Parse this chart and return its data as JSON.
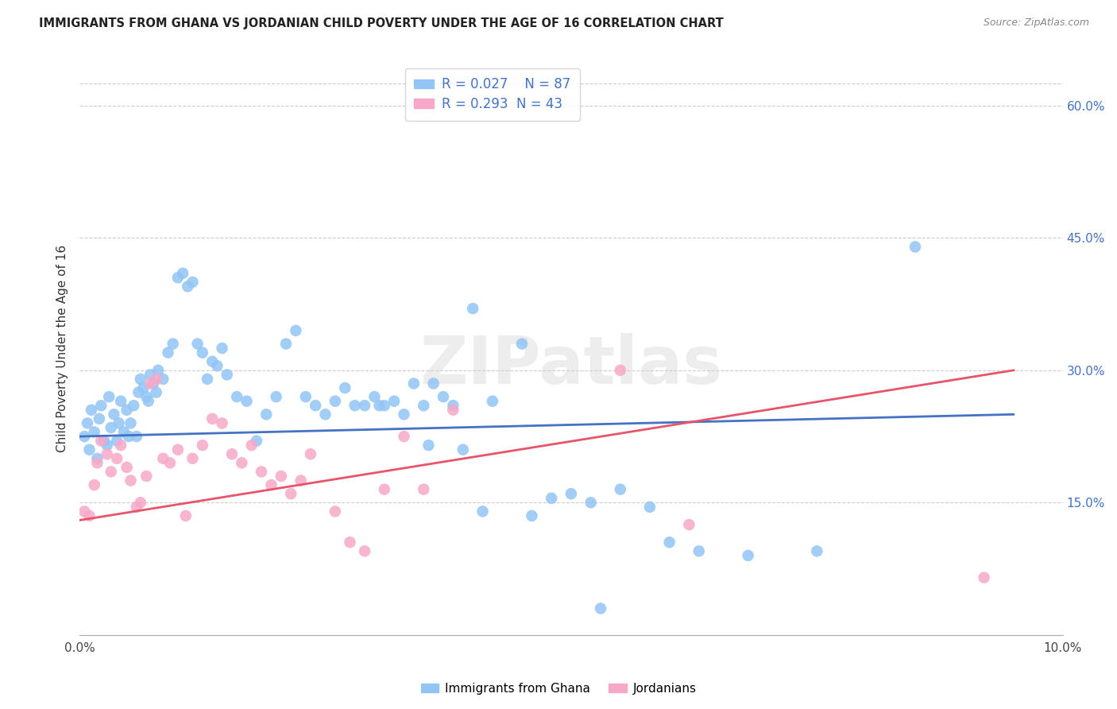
{
  "title": "IMMIGRANTS FROM GHANA VS JORDANIAN CHILD POVERTY UNDER THE AGE OF 16 CORRELATION CHART",
  "source": "Source: ZipAtlas.com",
  "ylabel": "Child Poverty Under the Age of 16",
  "xlim": [
    0.0,
    10.0
  ],
  "ylim": [
    0.0,
    65.0
  ],
  "xtick_positions": [
    0.0,
    2.0,
    4.0,
    6.0,
    8.0,
    10.0
  ],
  "xticklabels": [
    "0.0%",
    "",
    "",
    "",
    "",
    "10.0%"
  ],
  "ytick_positions": [
    15.0,
    30.0,
    45.0,
    60.0
  ],
  "ytick_labels": [
    "15.0%",
    "30.0%",
    "45.0%",
    "60.0%"
  ],
  "blue_color": "#92c5f5",
  "pink_color": "#f7a8c8",
  "blue_line_color": "#4472C4",
  "pink_line_color": "#e8546a",
  "legend_blue_r": "R = 0.027",
  "legend_blue_n": "N = 87",
  "legend_pink_r": "R = 0.293",
  "legend_pink_n": "N = 43",
  "legend_label_blue": "Immigrants from Ghana",
  "legend_label_pink": "Jordanians",
  "watermark": "ZIPatlas",
  "blue_scatter_x": [
    0.05,
    0.08,
    0.1,
    0.12,
    0.15,
    0.18,
    0.2,
    0.22,
    0.25,
    0.28,
    0.3,
    0.32,
    0.35,
    0.38,
    0.4,
    0.42,
    0.45,
    0.48,
    0.5,
    0.52,
    0.55,
    0.58,
    0.6,
    0.62,
    0.65,
    0.68,
    0.7,
    0.72,
    0.75,
    0.78,
    0.8,
    0.85,
    0.9,
    0.95,
    1.0,
    1.05,
    1.1,
    1.15,
    1.2,
    1.25,
    1.3,
    1.35,
    1.4,
    1.45,
    1.5,
    1.6,
    1.7,
    1.8,
    1.9,
    2.0,
    2.1,
    2.2,
    2.3,
    2.4,
    2.5,
    2.6,
    2.7,
    2.8,
    2.9,
    3.0,
    3.1,
    3.2,
    3.3,
    3.4,
    3.5,
    3.6,
    3.7,
    3.8,
    3.9,
    4.0,
    4.2,
    4.5,
    4.8,
    5.0,
    5.2,
    5.5,
    5.8,
    6.0,
    6.3,
    6.8,
    7.5,
    8.5,
    3.05,
    3.55,
    4.1,
    4.6,
    5.3
  ],
  "blue_scatter_y": [
    22.5,
    24.0,
    21.0,
    25.5,
    23.0,
    20.0,
    24.5,
    26.0,
    22.0,
    21.5,
    27.0,
    23.5,
    25.0,
    22.0,
    24.0,
    26.5,
    23.0,
    25.5,
    22.5,
    24.0,
    26.0,
    22.5,
    27.5,
    29.0,
    28.0,
    27.0,
    26.5,
    29.5,
    28.5,
    27.5,
    30.0,
    29.0,
    32.0,
    33.0,
    40.5,
    41.0,
    39.5,
    40.0,
    33.0,
    32.0,
    29.0,
    31.0,
    30.5,
    32.5,
    29.5,
    27.0,
    26.5,
    22.0,
    25.0,
    27.0,
    33.0,
    34.5,
    27.0,
    26.0,
    25.0,
    26.5,
    28.0,
    26.0,
    26.0,
    27.0,
    26.0,
    26.5,
    25.0,
    28.5,
    26.0,
    28.5,
    27.0,
    26.0,
    21.0,
    37.0,
    26.5,
    33.0,
    15.5,
    16.0,
    15.0,
    16.5,
    14.5,
    10.5,
    9.5,
    9.0,
    9.5,
    44.0,
    26.0,
    21.5,
    14.0,
    13.5,
    3.0
  ],
  "pink_scatter_x": [
    0.05,
    0.1,
    0.15,
    0.18,
    0.22,
    0.28,
    0.32,
    0.38,
    0.42,
    0.48,
    0.52,
    0.58,
    0.62,
    0.68,
    0.72,
    0.78,
    0.85,
    0.92,
    1.0,
    1.08,
    1.15,
    1.25,
    1.35,
    1.45,
    1.55,
    1.65,
    1.75,
    1.85,
    1.95,
    2.05,
    2.15,
    2.25,
    2.35,
    2.6,
    2.75,
    2.9,
    3.1,
    3.3,
    3.5,
    3.8,
    5.5,
    6.2,
    9.2
  ],
  "pink_scatter_y": [
    14.0,
    13.5,
    17.0,
    19.5,
    22.0,
    20.5,
    18.5,
    20.0,
    21.5,
    19.0,
    17.5,
    14.5,
    15.0,
    18.0,
    28.5,
    29.0,
    20.0,
    19.5,
    21.0,
    13.5,
    20.0,
    21.5,
    24.5,
    24.0,
    20.5,
    19.5,
    21.5,
    18.5,
    17.0,
    18.0,
    16.0,
    17.5,
    20.5,
    14.0,
    10.5,
    9.5,
    16.5,
    22.5,
    16.5,
    25.5,
    30.0,
    12.5,
    6.5
  ],
  "blue_line_x": [
    0.0,
    9.5
  ],
  "blue_line_y": [
    22.5,
    25.0
  ],
  "pink_line_x": [
    0.0,
    9.5
  ],
  "pink_line_y": [
    13.0,
    30.0
  ]
}
